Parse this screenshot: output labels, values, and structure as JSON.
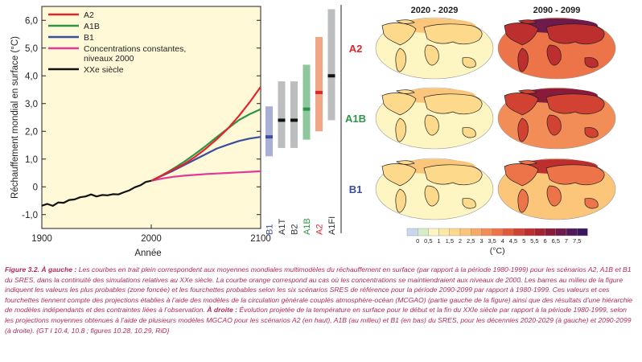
{
  "chart_data": [
    {
      "type": "line",
      "ylabel": "Réchauffement mondial en surface (°C)",
      "xlabel": "Année",
      "xlim": [
        1900,
        2100
      ],
      "ylim": [
        -1.5,
        6.5
      ],
      "x_ticks": [
        1900,
        2000,
        2100
      ],
      "y_ticks": [
        -1.0,
        0,
        1.0,
        2.0,
        3.0,
        4.0,
        5.0,
        6.0
      ],
      "y_tick_labels": [
        "-1,0",
        "0",
        "1,0",
        "2,0",
        "3,0",
        "4,0",
        "5,0",
        "6,0"
      ],
      "legend": [
        {
          "name": "A2",
          "color": "#e3252b"
        },
        {
          "name": "A1B",
          "color": "#2e9448"
        },
        {
          "name": "B1",
          "color": "#3a4d9f"
        },
        {
          "name": "Concentrations constantes,",
          "name2": "niveaux 2000",
          "color": "#e2389a"
        },
        {
          "name": "XXe siècle",
          "color": "#111111"
        }
      ],
      "series": [
        {
          "name": "XXe siècle",
          "color": "#111111",
          "x": [
            1900,
            1905,
            1910,
            1915,
            1920,
            1925,
            1930,
            1935,
            1940,
            1945,
            1950,
            1955,
            1960,
            1965,
            1970,
            1975,
            1980,
            1985,
            1990,
            1995,
            2000
          ],
          "y": [
            -0.68,
            -0.64,
            -0.66,
            -0.59,
            -0.55,
            -0.5,
            -0.43,
            -0.4,
            -0.32,
            -0.3,
            -0.32,
            -0.32,
            -0.28,
            -0.29,
            -0.25,
            -0.22,
            -0.1,
            -0.04,
            0.08,
            0.15,
            0.22
          ]
        },
        {
          "name": "A2",
          "color": "#e3252b",
          "x": [
            2000,
            2010,
            2020,
            2030,
            2040,
            2050,
            2060,
            2070,
            2080,
            2090,
            2100
          ],
          "y": [
            0.22,
            0.42,
            0.62,
            0.82,
            1.08,
            1.38,
            1.72,
            2.1,
            2.55,
            3.05,
            3.6
          ]
        },
        {
          "name": "A1B",
          "color": "#2e9448",
          "x": [
            2000,
            2010,
            2020,
            2030,
            2040,
            2050,
            2060,
            2070,
            2080,
            2090,
            2100
          ],
          "y": [
            0.22,
            0.42,
            0.65,
            0.9,
            1.18,
            1.48,
            1.8,
            2.1,
            2.4,
            2.62,
            2.8
          ]
        },
        {
          "name": "B1",
          "color": "#3a4d9f",
          "x": [
            2000,
            2010,
            2020,
            2030,
            2040,
            2050,
            2060,
            2070,
            2080,
            2090,
            2100
          ],
          "y": [
            0.22,
            0.4,
            0.58,
            0.78,
            0.98,
            1.18,
            1.38,
            1.52,
            1.65,
            1.74,
            1.8
          ]
        },
        {
          "name": "Concentrations constantes, niveaux 2000",
          "color": "#e2389a",
          "x": [
            2000,
            2010,
            2020,
            2030,
            2040,
            2050,
            2060,
            2070,
            2080,
            2090,
            2100
          ],
          "y": [
            0.22,
            0.3,
            0.36,
            0.4,
            0.43,
            0.46,
            0.48,
            0.5,
            0.52,
            0.54,
            0.56
          ]
        }
      ]
    },
    {
      "type": "range-bars",
      "ylim": [
        -1.5,
        6.5
      ],
      "categories": [
        "B1",
        "A1T",
        "B2",
        "A1B",
        "A2",
        "A1FI"
      ],
      "colors": [
        "#3a4d9f",
        "#333333",
        "#333333",
        "#2e9448",
        "#e3252b",
        "#333333"
      ],
      "ranges": [
        [
          1.1,
          2.9
        ],
        [
          1.4,
          3.8
        ],
        [
          1.4,
          3.8
        ],
        [
          1.7,
          4.4
        ],
        [
          2.0,
          5.4
        ],
        [
          2.4,
          6.4
        ]
      ],
      "likely_ranges": [
        [
          1.1,
          2.9
        ],
        [
          1.4,
          3.8
        ],
        [
          1.4,
          3.8
        ],
        [
          1.7,
          4.4
        ],
        [
          2.0,
          5.4
        ],
        [
          2.4,
          6.4
        ]
      ],
      "best_estimates": [
        1.8,
        2.4,
        2.4,
        2.8,
        3.4,
        4.0
      ],
      "bar_colors": [
        "#a9b0d6",
        "#bcbdbf",
        "#bcbdbf",
        "#8fc79d",
        "#f3a685",
        "#bcbdbf"
      ],
      "mid_colors": [
        "#3a4d9f",
        "#111111",
        "#111111",
        "#2e9448",
        "#e3252b",
        "#111111"
      ]
    },
    {
      "type": "map-grid",
      "columns": [
        "2020 - 2029",
        "2090 - 2099"
      ],
      "rows": [
        {
          "name": "A2",
          "color": "#e3252b"
        },
        {
          "name": "A1B",
          "color": "#2e9448"
        },
        {
          "name": "B1",
          "color": "#3a4d9f"
        }
      ],
      "colorbar_labels": [
        "0",
        "0,5",
        "1",
        "1,5",
        "2",
        "2,5",
        "3",
        "3,5",
        "4",
        "4,5",
        "5",
        "5,5",
        "6",
        "6,5",
        "7",
        "7,5"
      ],
      "colorbar_colors": [
        "#c9d8ee",
        "#d7edc8",
        "#fdf6c2",
        "#fde9a5",
        "#fdd98c",
        "#fbc57a",
        "#f6aa67",
        "#f28d57",
        "#ec7448",
        "#e15a3c",
        "#d24232",
        "#bd2f2e",
        "#a52230",
        "#8a1a3a",
        "#6e1a4a",
        "#4e1a57",
        "#3a165c"
      ],
      "colorbar_unit": "(°C)"
    }
  ],
  "caption": {
    "lead": "Figure 3.2.",
    "left_label": " À gauche :",
    "part1": " Les courbes en trait plein correspondent aux moyennes mondiales multimodèles du réchauffement en surface (par rapport à la période 1980-1999) pour les scénarios A2, A1B et B1 du SRES, dans la continuité des simulations relatives au XXe siècle. La courbe orange correspond au cas où les concentrations se maintiendraient aux niveaux de 2000. Les barres au milieu de la figure indiquent les valeurs les plus probables (zone foncée) et les fourchettes probables selon les six scénarios SRES de référence pour la période 2090-2099 par rapport à 1980-1999. Ces valeurs et ces fourchettes tiennent compte des projections établies à l’aide des modèles de la circulation générale couplés atmosphère-océan (MCGAO) (partie gauche de la figure) ainsi que des résultats d’une hiérarchie de modèles indépendants et des contraintes liées à l’observation.",
    "right_label": " À droite :",
    "part2": " Évolution projetée de la température en surface pour le début et la fin du XXIe siècle par rapport à la période 1980-1999, selon les projections moyennes obtenues à l’aide de plusieurs modèles MGCAO pour les scénarios A2 (en haut), A1B (au milieu) et B1 (en bas) du SRES, pour les décennies 2020-2029 (à gauche) et 2090-2099 (à droite). {GT I 10.4, 10.8 ; figures 10.28, 10.29, RiD}"
  }
}
